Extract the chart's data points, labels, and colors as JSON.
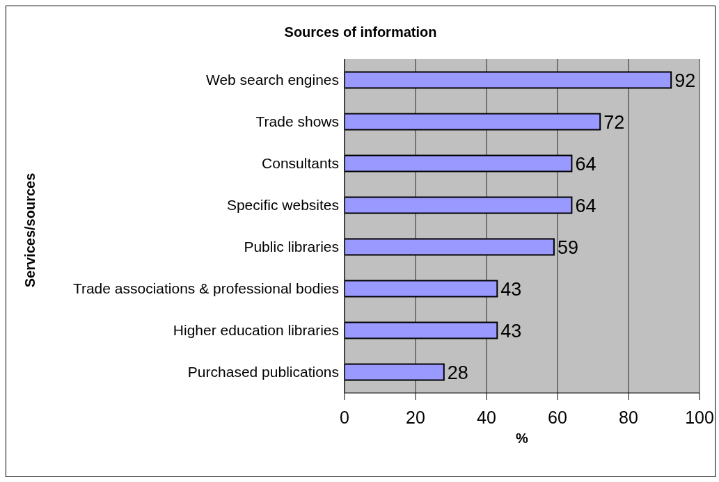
{
  "chart_data": {
    "type": "bar",
    "orientation": "horizontal",
    "title": "Sources of information",
    "xlabel": "%",
    "ylabel": "Services/sources",
    "categories": [
      "Web search engines",
      "Trade shows",
      "Consultants",
      "Specific websites",
      "Public libraries",
      "Trade associations & professional bodies",
      "Higher education libraries",
      "Purchased publications"
    ],
    "values": [
      92,
      72,
      64,
      64,
      59,
      43,
      43,
      28
    ],
    "color": "#9999ff",
    "data_labels": true,
    "xlim": [
      0,
      100
    ],
    "xticks": [
      0,
      20,
      40,
      60,
      80,
      100
    ],
    "grid": "x"
  }
}
